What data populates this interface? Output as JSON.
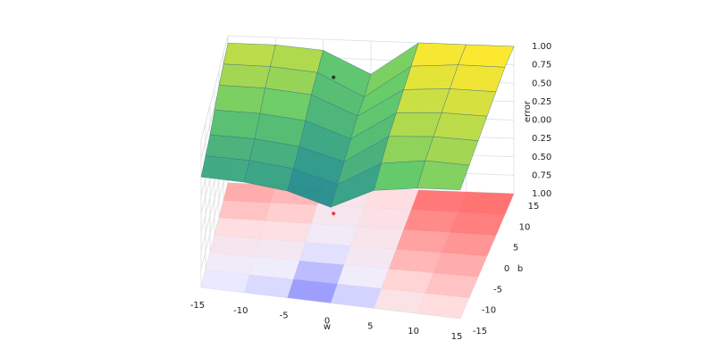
{
  "chart_data": {
    "type": "surface3d",
    "xlabel": "w",
    "ylabel": "b",
    "zlabel": "error",
    "xlim": [
      -15,
      15
    ],
    "ylim": [
      -15,
      15
    ],
    "zlim": [
      -1,
      1
    ],
    "xticks": [
      -15,
      -10,
      -5,
      0,
      5,
      10,
      15
    ],
    "yticks": [
      -15,
      -10,
      -5,
      0,
      5,
      10,
      15
    ],
    "zticks": [
      {
        "value": -1,
        "label": "1.00"
      },
      {
        "value": -0.75,
        "label": "0.75"
      },
      {
        "value": -0.5,
        "label": "0.50"
      },
      {
        "value": -0.25,
        "label": "0.25"
      },
      {
        "value": 0,
        "label": "0.00"
      },
      {
        "value": 0.25,
        "label": "0.25"
      },
      {
        "value": 0.5,
        "label": "0.50"
      },
      {
        "value": 0.75,
        "label": "0.75"
      },
      {
        "value": 1,
        "label": "1.00"
      }
    ],
    "x": [
      -15,
      -10,
      -5,
      0,
      5,
      10,
      15
    ],
    "y": [
      -15,
      -10,
      -5,
      0,
      5,
      10,
      15
    ],
    "z": [
      [
        0.5,
        0.5,
        0.45,
        0.3,
        0.6,
        0.7,
        0.75
      ],
      [
        0.55,
        0.55,
        0.5,
        0.35,
        0.7,
        0.8,
        0.8
      ],
      [
        0.6,
        0.6,
        0.55,
        0.4,
        0.8,
        0.85,
        0.85
      ],
      [
        0.7,
        0.7,
        0.65,
        0.45,
        0.85,
        0.9,
        0.9
      ],
      [
        0.8,
        0.8,
        0.75,
        0.5,
        0.9,
        0.95,
        0.95
      ],
      [
        0.85,
        0.85,
        0.8,
        0.5,
        0.95,
        1.0,
        1.0
      ],
      [
        0.9,
        0.9,
        0.85,
        0.55,
        1.0,
        1.0,
        1.0
      ]
    ],
    "marker": {
      "x": -3,
      "y": 8,
      "z": 0.85
    },
    "grid": true
  }
}
